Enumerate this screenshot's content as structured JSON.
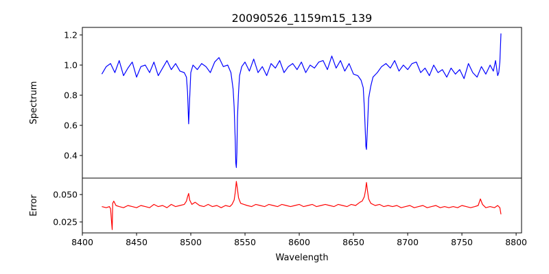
{
  "chart_data": [
    {
      "type": "line",
      "title": "20090526_1159m15_139",
      "ylabel": "Spectrum",
      "xlim": [
        8400,
        8805
      ],
      "ylim": [
        0.25,
        1.25
      ],
      "yticks": [
        0.4,
        0.6,
        0.8,
        1.0,
        1.2
      ],
      "ytick_labels": [
        "0.4",
        "0.6",
        "0.8",
        "1.0",
        "1.2"
      ],
      "grid": false,
      "series": [
        {
          "color": "#0000ff",
          "x": [
            8418,
            8422,
            8426,
            8430,
            8434,
            8438,
            8442,
            8446,
            8450,
            8454,
            8458,
            8462,
            8466,
            8470,
            8474,
            8478,
            8482,
            8486,
            8490,
            8494,
            8496,
            8497,
            8498,
            8499,
            8500,
            8502,
            8506,
            8510,
            8514,
            8518,
            8522,
            8526,
            8530,
            8534,
            8537,
            8539,
            8540,
            8541,
            8541.5,
            8542,
            8542.5,
            8543,
            8544,
            8545,
            8547,
            8550,
            8554,
            8558,
            8562,
            8566,
            8570,
            8574,
            8578,
            8582,
            8586,
            8590,
            8594,
            8598,
            8602,
            8606,
            8610,
            8614,
            8618,
            8622,
            8626,
            8630,
            8634,
            8638,
            8642,
            8646,
            8650,
            8654,
            8657,
            8659,
            8660,
            8661,
            8661.5,
            8662,
            8663,
            8664,
            8666,
            8668,
            8672,
            8676,
            8680,
            8684,
            8688,
            8692,
            8696,
            8700,
            8704,
            8708,
            8712,
            8716,
            8720,
            8724,
            8728,
            8732,
            8736,
            8740,
            8744,
            8748,
            8752,
            8756,
            8760,
            8764,
            8768,
            8772,
            8776,
            8779,
            8781,
            8783,
            8784,
            8785,
            8786
          ],
          "y": [
            0.94,
            0.99,
            1.01,
            0.95,
            1.03,
            0.93,
            0.98,
            1.02,
            0.92,
            0.99,
            1.0,
            0.95,
            1.02,
            0.93,
            0.98,
            1.03,
            0.97,
            1.01,
            0.96,
            0.95,
            0.92,
            0.82,
            0.61,
            0.78,
            0.95,
            1.0,
            0.97,
            1.01,
            0.99,
            0.95,
            1.02,
            1.05,
            0.99,
            1.0,
            0.95,
            0.84,
            0.72,
            0.5,
            0.35,
            0.32,
            0.42,
            0.65,
            0.82,
            0.93,
            0.99,
            1.02,
            0.96,
            1.04,
            0.95,
            0.99,
            0.93,
            1.01,
            0.98,
            1.03,
            0.95,
            0.99,
            1.01,
            0.97,
            1.02,
            0.95,
            1.0,
            0.98,
            1.02,
            1.03,
            0.97,
            1.06,
            0.98,
            1.03,
            0.96,
            1.01,
            0.94,
            0.93,
            0.9,
            0.85,
            0.72,
            0.55,
            0.46,
            0.44,
            0.6,
            0.78,
            0.86,
            0.92,
            0.95,
            0.99,
            1.01,
            0.98,
            1.03,
            0.96,
            1.0,
            0.97,
            1.01,
            1.02,
            0.95,
            0.98,
            0.93,
            1.0,
            0.95,
            0.97,
            0.92,
            0.98,
            0.94,
            0.97,
            0.91,
            1.01,
            0.95,
            0.92,
            0.99,
            0.94,
            1.0,
            0.96,
            1.03,
            0.93,
            0.95,
            1.02,
            1.21
          ]
        }
      ]
    },
    {
      "type": "line",
      "xlabel": "Wavelength",
      "ylabel": "Error",
      "xlim": [
        8400,
        8805
      ],
      "ylim": [
        0.015,
        0.065
      ],
      "xticks": [
        8400,
        8450,
        8500,
        8550,
        8600,
        8650,
        8700,
        8750,
        8800
      ],
      "xtick_labels": [
        "8400",
        "8450",
        "8500",
        "8550",
        "8600",
        "8650",
        "8700",
        "8750",
        "8800"
      ],
      "yticks": [
        0.025,
        0.05
      ],
      "ytick_labels": [
        "0.025",
        "0.050"
      ],
      "grid": false,
      "series": [
        {
          "color": "#ff0000",
          "x": [
            8418,
            8422,
            8425,
            8426,
            8427,
            8427.5,
            8428,
            8429,
            8431,
            8434,
            8438,
            8442,
            8446,
            8450,
            8454,
            8458,
            8462,
            8466,
            8470,
            8474,
            8478,
            8482,
            8486,
            8490,
            8494,
            8496,
            8497,
            8498,
            8499,
            8501,
            8504,
            8508,
            8512,
            8516,
            8520,
            8524,
            8528,
            8532,
            8536,
            8538,
            8540,
            8541,
            8542,
            8543,
            8544,
            8546,
            8549,
            8552,
            8556,
            8560,
            8564,
            8568,
            8572,
            8576,
            8580,
            8584,
            8588,
            8592,
            8596,
            8600,
            8604,
            8608,
            8612,
            8616,
            8620,
            8624,
            8628,
            8632,
            8636,
            8640,
            8644,
            8648,
            8652,
            8656,
            8658,
            8660,
            8661,
            8662,
            8663,
            8664,
            8666,
            8670,
            8674,
            8678,
            8682,
            8686,
            8690,
            8694,
            8698,
            8702,
            8706,
            8710,
            8714,
            8718,
            8722,
            8726,
            8730,
            8734,
            8738,
            8742,
            8746,
            8750,
            8754,
            8758,
            8762,
            8765,
            8767,
            8769,
            8772,
            8776,
            8780,
            8783,
            8785,
            8786
          ],
          "y": [
            0.039,
            0.038,
            0.039,
            0.037,
            0.024,
            0.018,
            0.042,
            0.044,
            0.04,
            0.039,
            0.038,
            0.04,
            0.039,
            0.038,
            0.04,
            0.039,
            0.038,
            0.041,
            0.039,
            0.04,
            0.038,
            0.041,
            0.039,
            0.04,
            0.041,
            0.044,
            0.048,
            0.051,
            0.045,
            0.041,
            0.043,
            0.04,
            0.039,
            0.041,
            0.039,
            0.04,
            0.038,
            0.04,
            0.039,
            0.041,
            0.045,
            0.052,
            0.062,
            0.055,
            0.047,
            0.042,
            0.041,
            0.04,
            0.039,
            0.041,
            0.04,
            0.039,
            0.041,
            0.04,
            0.039,
            0.041,
            0.04,
            0.039,
            0.04,
            0.041,
            0.039,
            0.04,
            0.041,
            0.039,
            0.04,
            0.041,
            0.04,
            0.039,
            0.041,
            0.04,
            0.039,
            0.041,
            0.04,
            0.043,
            0.044,
            0.048,
            0.053,
            0.061,
            0.053,
            0.046,
            0.042,
            0.04,
            0.041,
            0.039,
            0.04,
            0.039,
            0.04,
            0.038,
            0.039,
            0.04,
            0.038,
            0.039,
            0.04,
            0.038,
            0.039,
            0.04,
            0.038,
            0.039,
            0.038,
            0.039,
            0.038,
            0.04,
            0.039,
            0.038,
            0.039,
            0.04,
            0.046,
            0.041,
            0.038,
            0.039,
            0.038,
            0.04,
            0.038,
            0.032
          ]
        }
      ]
    }
  ]
}
